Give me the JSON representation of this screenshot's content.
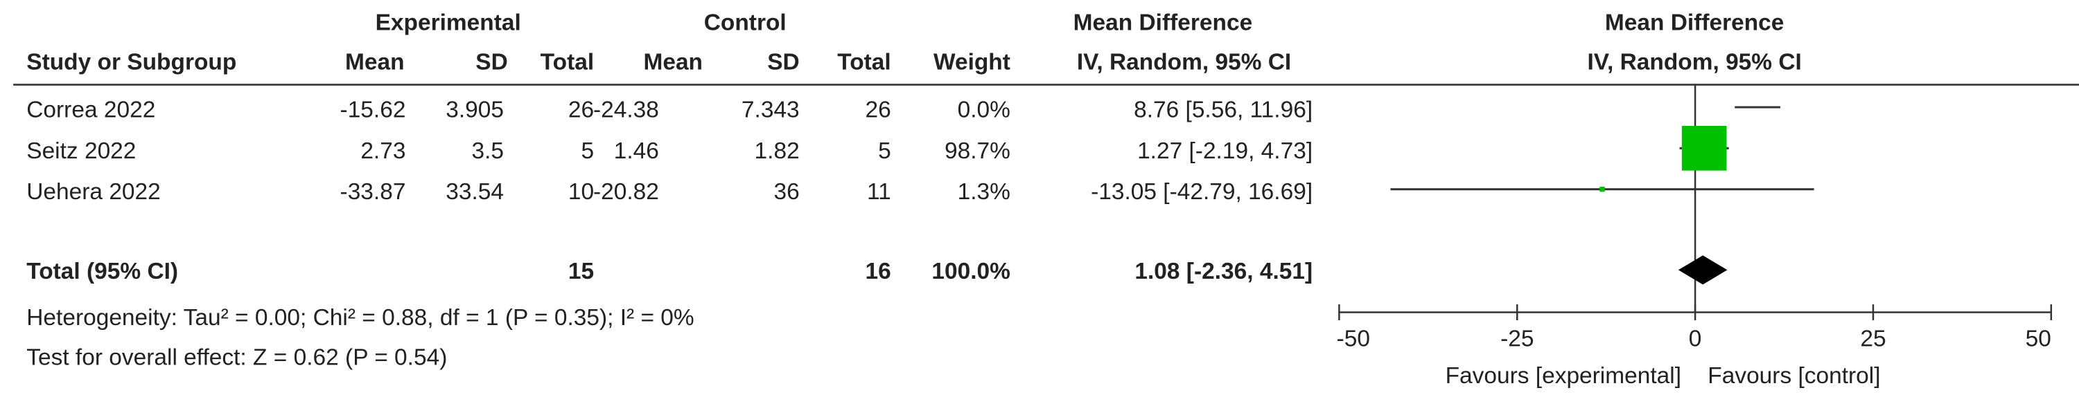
{
  "chart_data": {
    "type": "forest",
    "group_headers": [
      "Experimental",
      "Control",
      "Mean Difference",
      "Mean Difference"
    ],
    "columns": [
      "Study or Subgroup",
      "Mean",
      "SD",
      "Total",
      "Mean",
      "SD",
      "Total",
      "Weight",
      "IV, Random, 95% CI",
      "IV, Random, 95% CI"
    ],
    "studies": [
      {
        "name": "Correa 2022",
        "exp_mean": -15.62,
        "exp_sd": 3.905,
        "exp_total": 26,
        "ctl_mean": -24.38,
        "ctl_sd": 7.343,
        "ctl_total": 26,
        "weight": {
          "value": 0,
          "label": "0.0%"
        },
        "md": 8.76,
        "ci": [
          5.56,
          11.96
        ],
        "ci_label": "8.76 [5.56, 11.96]"
      },
      {
        "name": "Seitz 2022",
        "exp_mean": 2.73,
        "exp_sd": 3.5,
        "exp_total": 5,
        "ctl_mean": 1.46,
        "ctl_sd": 1.82,
        "ctl_total": 5,
        "weight": {
          "value": 98.7,
          "label": "98.7%"
        },
        "md": 1.27,
        "ci": [
          -2.19,
          4.73
        ],
        "ci_label": "1.27 [-2.19, 4.73]"
      },
      {
        "name": "Uehera 2022",
        "exp_mean": -33.87,
        "exp_sd": 33.54,
        "exp_total": 10,
        "ctl_mean": -20.82,
        "ctl_sd": 36,
        "ctl_total": 11,
        "weight": {
          "value": 1.3,
          "label": "1.3%"
        },
        "md": -13.05,
        "ci": [
          -42.79,
          16.69
        ],
        "ci_label": "-13.05 [-42.79, 16.69]"
      }
    ],
    "total": {
      "name": "Total (95% CI)",
      "exp_total": 15,
      "ctl_total": 16,
      "weight": {
        "value": 100,
        "label": "100.0%"
      },
      "md": 1.08,
      "ci": [
        -2.36,
        4.51
      ],
      "ci_label": "1.08 [-2.36, 4.51]"
    },
    "heterogeneity": "Heterogeneity: Tau² = 0.00; Chi² = 0.88, df = 1 (P = 0.35); I² = 0%",
    "overall_effect": "Test for overall effect: Z = 0.62 (P = 0.54)",
    "xlim": [
      -50,
      50
    ],
    "xticks": [
      -50,
      -25,
      0,
      25,
      50
    ],
    "favours_left": "Favours [experimental]",
    "favours_right": "Favours [control]",
    "square_color": "#00c000",
    "diamond_color": "#000000"
  }
}
